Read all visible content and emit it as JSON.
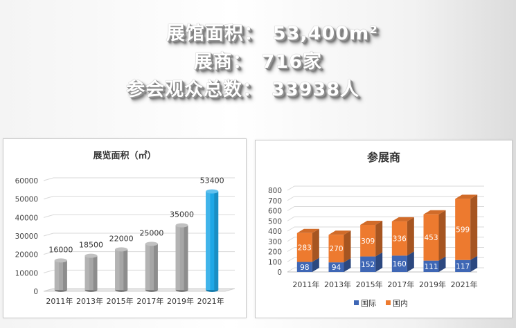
{
  "headline": {
    "lines": [
      {
        "label": "展馆面积：",
        "value": "53,400m²"
      },
      {
        "label": "展商：",
        "value": "716家"
      },
      {
        "label": "参会观众总数：",
        "value": "33938人"
      }
    ]
  },
  "chart_data": [
    {
      "type": "bar",
      "title": "展览面积（㎡）",
      "categories": [
        "2011年",
        "2013年",
        "2015年",
        "2017年",
        "2019年",
        "2021年"
      ],
      "values": [
        16000,
        18500,
        22000,
        25000,
        35000,
        53400
      ],
      "data_labels": [
        "16000",
        "18500",
        "22000",
        "25000",
        "35000",
        "53400"
      ],
      "yticks": [
        "0",
        "10000",
        "20000",
        "30000",
        "40000",
        "50000",
        "60000"
      ],
      "ylim": [
        0,
        60000
      ],
      "colors": {
        "bar": "#a6a6a6",
        "highlight": "#1ea7e6"
      },
      "highlight_index": 5
    },
    {
      "type": "bar",
      "stacked": true,
      "title": "参展商",
      "categories": [
        "2011年",
        "2013年",
        "2015年",
        "2017年",
        "2019年",
        "2021年"
      ],
      "series": [
        {
          "name": "国际",
          "values": [
            98,
            94,
            152,
            160,
            111,
            117
          ],
          "labels": [
            "98",
            "94",
            "152",
            "160",
            "111",
            "117"
          ],
          "color": "#3f67b5"
        },
        {
          "name": "国内",
          "values": [
            283,
            270,
            309,
            336,
            453,
            599
          ],
          "labels": [
            "283",
            "270",
            "309",
            "336",
            "453",
            "599"
          ],
          "color": "#ed7a2f"
        }
      ],
      "yticks": [
        "0",
        "100",
        "200",
        "300",
        "400",
        "500",
        "600",
        "700",
        "800"
      ],
      "ylim": [
        0,
        800
      ],
      "legend_position": "bottom"
    }
  ]
}
